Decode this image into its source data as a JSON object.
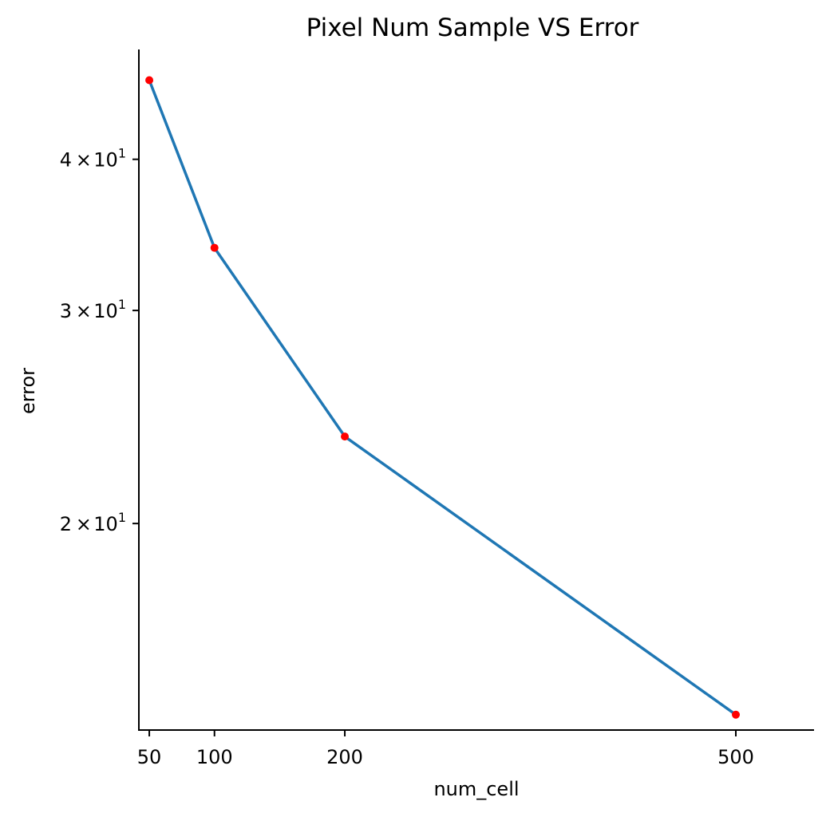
{
  "chart_data": {
    "type": "line",
    "title": "Pixel Num Sample VS Error",
    "xlabel": "num_cell",
    "ylabel": "error",
    "x": [
      50,
      100,
      200,
      500
    ],
    "series": [
      {
        "values": [
          46.5,
          33.8,
          23.6,
          13.9
        ],
        "line_color": "#1f77b4",
        "marker_color": "#ff0000"
      }
    ],
    "xticks": [
      {
        "value": 50,
        "label": "50"
      },
      {
        "value": 100,
        "label": "100"
      },
      {
        "value": 200,
        "label": "200"
      },
      {
        "value": 500,
        "label": "500"
      }
    ],
    "yticks": [
      {
        "value": 40,
        "mantissa": "4",
        "base": "10",
        "exponent": "1"
      },
      {
        "value": 30,
        "mantissa": "3",
        "base": "10",
        "exponent": "1"
      },
      {
        "value": 20,
        "mantissa": "2",
        "base": "10",
        "exponent": "1"
      }
    ],
    "xlim": [
      42,
      560
    ],
    "ylim": [
      13.5,
      49.3
    ],
    "yscale": "log",
    "grid": false,
    "spines": [
      "left",
      "bottom"
    ]
  }
}
